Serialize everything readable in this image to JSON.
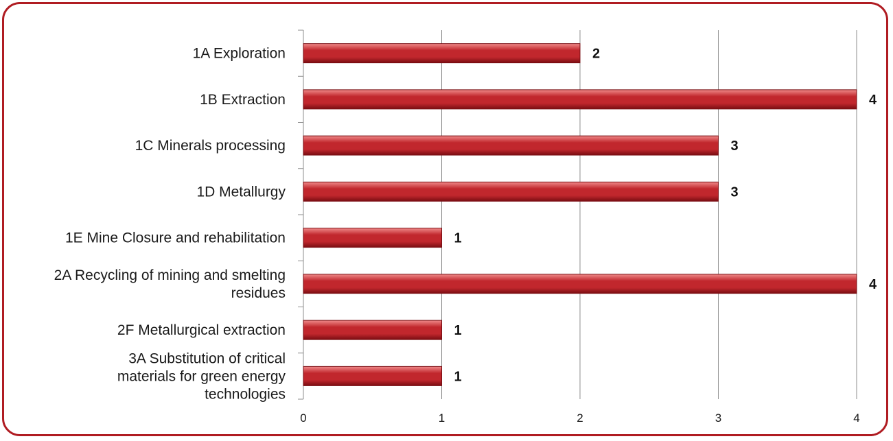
{
  "chart_data": {
    "type": "bar",
    "orientation": "horizontal",
    "categories": [
      "1A Exploration",
      "1B Extraction",
      "1C Minerals processing",
      "1D Metallurgy",
      "1E Mine Closure and rehabilitation",
      "2A Recycling of mining and smelting residues",
      "2F Metallurgical extraction",
      "3A Substitution of critical materials for green energy technologies"
    ],
    "values": [
      2,
      4,
      3,
      3,
      1,
      4,
      1,
      1
    ],
    "xlim": [
      0,
      4
    ],
    "xticks": [
      "0",
      "1",
      "2",
      "3",
      "4"
    ],
    "grid": true,
    "data_labels": true,
    "legend": "none",
    "title": "",
    "xlabel": "",
    "ylabel": "",
    "colors": {
      "bar": "#c1272d",
      "bar_light": "#f08a8a",
      "bar_dark": "#7a0d12",
      "frame": "#b01c22",
      "grid": "#8c8c8c"
    }
  }
}
